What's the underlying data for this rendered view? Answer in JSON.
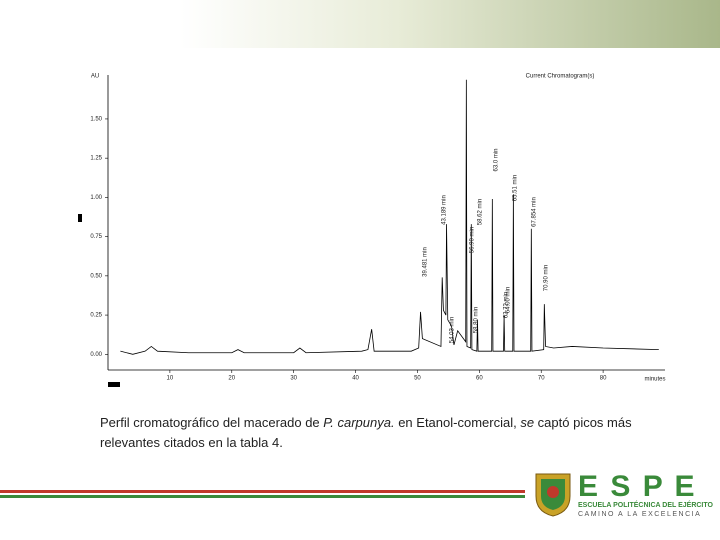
{
  "chart_data": {
    "type": "line",
    "title": "Current Chromatogram(s)",
    "y_label": "AU",
    "x_label": "minutes",
    "x": [
      2,
      4,
      6,
      7,
      8,
      13,
      20,
      21,
      22,
      30,
      31,
      32,
      41,
      42,
      42.6,
      43,
      49,
      50.2,
      50.5,
      50.8,
      53.8,
      54.0,
      54.2,
      54.6,
      54.7,
      54.9,
      55.5,
      55.9,
      56.5,
      57.8,
      57.9,
      58.0,
      58.6,
      58.7,
      58.8,
      59.6,
      59.7,
      59.8,
      62.0,
      62.1,
      62.2,
      63.9,
      64.0,
      64.1,
      65.4,
      65.5,
      65.6,
      68.3,
      68.4,
      68.5,
      70.4,
      70.5,
      70.7,
      72,
      75,
      80,
      89
    ],
    "series": [
      {
        "color": "#000000",
        "values": [
          0.02,
          0.0,
          0.02,
          0.05,
          0.02,
          0.01,
          0.01,
          0.03,
          0.01,
          0.01,
          0.04,
          0.01,
          0.02,
          0.03,
          0.16,
          0.02,
          0.02,
          0.04,
          0.27,
          0.1,
          0.05,
          0.49,
          0.28,
          0.25,
          0.83,
          0.22,
          0.18,
          0.06,
          0.15,
          0.08,
          1.75,
          0.05,
          0.04,
          0.83,
          0.03,
          0.02,
          0.22,
          0.02,
          0.02,
          0.99,
          0.02,
          0.02,
          0.25,
          0.02,
          0.02,
          1.02,
          0.02,
          0.02,
          0.8,
          0.02,
          0.03,
          0.32,
          0.05,
          0.04,
          0.05,
          0.04,
          0.03
        ]
      }
    ],
    "xlim": [
      0,
      90
    ],
    "ylim": [
      -0.1,
      1.78
    ],
    "xticks": [
      10,
      20,
      30,
      40,
      50,
      60,
      70,
      80
    ],
    "yticks": [
      {
        "value": 0,
        "label": "0.00"
      },
      {
        "value": 0.25,
        "label": "0.25"
      },
      {
        "value": 0.5,
        "label": "0.50"
      },
      {
        "value": 0.75,
        "label": "0.75"
      },
      {
        "value": 1,
        "label": "1.00"
      },
      {
        "value": 1.25,
        "label": "1.25"
      },
      {
        "value": 1.5,
        "label": "1.50"
      }
    ],
    "annotations": [
      "39.481 min",
      "54.03 min",
      "43.189 min",
      "56.90 min",
      "58.80 min",
      "58.62 min",
      "62.72 min",
      "63.0 min",
      "64.00 min",
      "65.51 min",
      "67.854 min",
      "70.90 min"
    ]
  },
  "caption": {
    "part1": "Perfil  cromatográfico del macerado de ",
    "italic1": "P. carpunya.",
    "part2": " en Etanol-comercial, ",
    "italic2": "se",
    "part3": " captó picos más relevantes citados en la tabla 4."
  },
  "logo": {
    "name": "E S P E",
    "school": "ESCUELA POLITÉCNICA DEL EJÉRCITO",
    "motto": "CAMINO A LA EXCELENCIA"
  }
}
